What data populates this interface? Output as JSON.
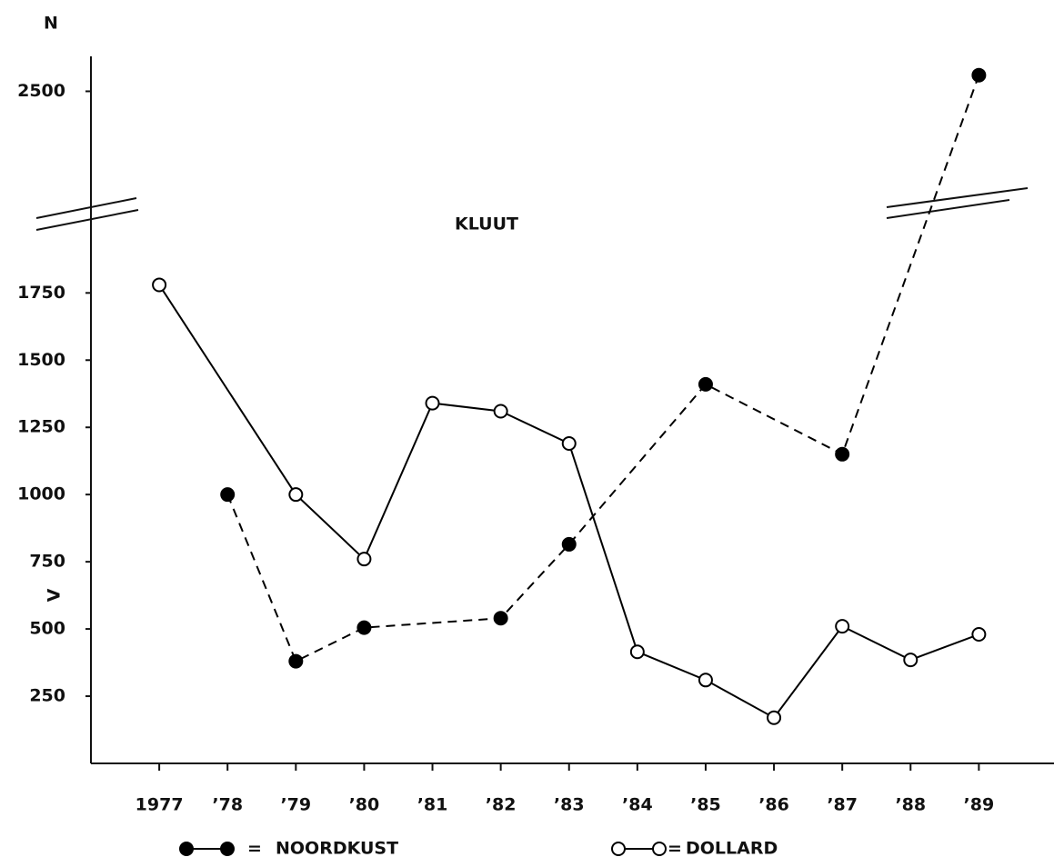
{
  "chart_data": {
    "type": "line",
    "title": "KLUUT",
    "ylabel": "N",
    "annotation": "V",
    "legend_separator": "=",
    "xlim": [
      1976,
      1990.1
    ],
    "xticks": [
      1977,
      {
        "value": 1978,
        "label": "’78"
      },
      {
        "value": 1979,
        "label": "’79"
      },
      {
        "value": 1980,
        "label": "’80"
      },
      {
        "value": 1981,
        "label": "’81"
      },
      {
        "value": 1982,
        "label": "’82"
      },
      {
        "value": 1983,
        "label": "’83"
      },
      {
        "value": 1984,
        "label": "’84"
      },
      {
        "value": 1985,
        "label": "’85"
      },
      {
        "value": 1986,
        "label": "’86"
      },
      {
        "value": 1987,
        "label": "’87"
      },
      {
        "value": 1988,
        "label": "’88"
      },
      {
        "value": 1989,
        "label": "’89"
      }
    ],
    "ylim": [
      0,
      2630
    ],
    "yticks": [
      250,
      500,
      750,
      1000,
      1250,
      1500,
      1750,
      2500
    ],
    "grid": false,
    "series": [
      {
        "name": "NOORDKUST",
        "color": "#000000",
        "dashed": true,
        "filled": true,
        "x": [
          1978,
          1979,
          1980,
          1982,
          1983,
          1985,
          1987,
          1989
        ],
        "values": [
          1000,
          380,
          505,
          540,
          815,
          1410,
          1150,
          2560
        ]
      },
      {
        "name": "DOLLARD",
        "color": "#000000",
        "dashed": false,
        "filled": false,
        "x": [
          1977,
          1979,
          1980,
          1981,
          1982,
          1983,
          1984,
          1985,
          1986,
          1987,
          1988,
          1989
        ],
        "values": [
          1780,
          1000,
          760,
          1340,
          1310,
          1190,
          415,
          310,
          170,
          510,
          385,
          480
        ]
      }
    ]
  }
}
